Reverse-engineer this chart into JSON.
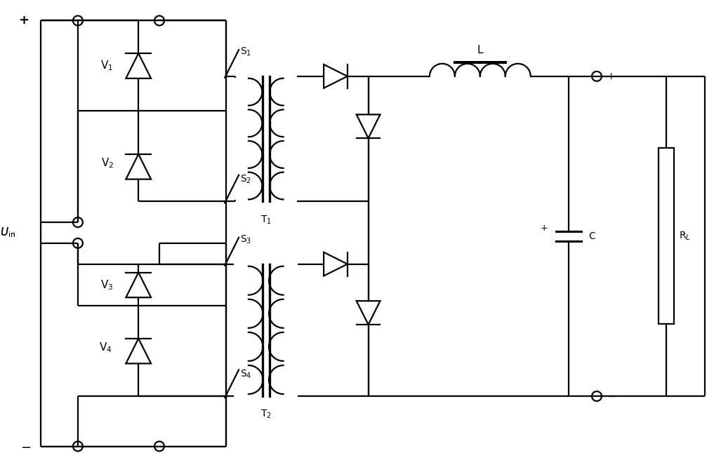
{
  "bg": "#ffffff",
  "lc": "#000000",
  "lw": 1.6,
  "fw": 10.27,
  "fh": 6.69
}
